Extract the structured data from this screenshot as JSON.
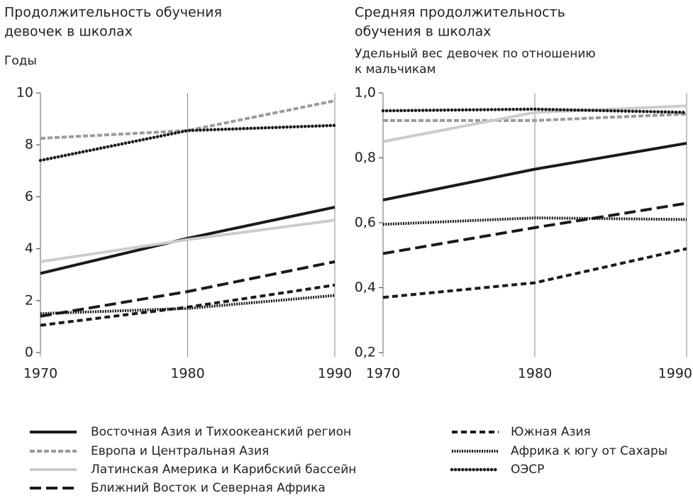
{
  "chart_data": [
    {
      "type": "line",
      "title": [
        "Продолжительность обучения",
        "девочек в школах"
      ],
      "y_label": "Годы",
      "x": [
        1970,
        1980,
        1990
      ],
      "xlim": [
        1970,
        1990
      ],
      "xticks": [
        1970,
        1980,
        1990
      ],
      "ylim": [
        0,
        10
      ],
      "yticks": [
        0,
        2,
        4,
        6,
        8,
        10
      ],
      "series": [
        {
          "name": "Восточная Азия и Тихоокеанский регион",
          "color": "#1a1a1a",
          "dash": "none",
          "values": [
            3.05,
            4.4,
            5.6
          ]
        },
        {
          "name": "Европа и Центральная Азия",
          "color": "#9a9a9a",
          "dash": "7 3",
          "values": [
            8.25,
            8.55,
            9.7
          ]
        },
        {
          "name": "Латинская Америка и Карибский бассейн",
          "color": "#cccccc",
          "dash": "none",
          "values": [
            3.5,
            4.35,
            5.1
          ]
        },
        {
          "name": "Ближний Восток и Северная Африка",
          "color": "#1a1a1a",
          "dash": "16 7",
          "values": [
            1.4,
            2.35,
            3.5
          ]
        },
        {
          "name": "Южная Азия",
          "color": "#1a1a1a",
          "dash": "8 5",
          "values": [
            1.05,
            1.75,
            2.6
          ]
        },
        {
          "name": "Африка к югу от Сахары",
          "color": "#1a1a1a",
          "dash": "2 1.5",
          "values": [
            1.5,
            1.7,
            2.2
          ]
        },
        {
          "name": "ОЭСР",
          "color": "#1a1a1a",
          "dash": "0.1 5",
          "values": [
            7.4,
            8.55,
            8.75
          ]
        }
      ]
    },
    {
      "type": "line",
      "title": [
        "Средняя продолжительность",
        "обучения в школах"
      ],
      "subtitle": [
        "Удельный вес девочек по отношению",
        "к мальчикам"
      ],
      "x": [
        1970,
        1980,
        1990
      ],
      "xlim": [
        1970,
        1990
      ],
      "xticks": [
        1970,
        1980,
        1990
      ],
      "ylim": [
        0.2,
        1.0
      ],
      "yticks": [
        {
          "value": 0.2,
          "label": "0,2"
        },
        {
          "value": 0.4,
          "label": "0,4"
        },
        {
          "value": 0.6,
          "label": "0,6"
        },
        {
          "value": 0.8,
          "label": "0,8"
        },
        {
          "value": 1.0,
          "label": "1,0"
        }
      ],
      "series": [
        {
          "color": "#1a1a1a",
          "dash": "none",
          "values": [
            0.67,
            0.765,
            0.845
          ]
        },
        {
          "color": "#9a9a9a",
          "dash": "7 3",
          "values": [
            0.915,
            0.915,
            0.935
          ]
        },
        {
          "color": "#cccccc",
          "dash": "none",
          "values": [
            0.85,
            0.94,
            0.96
          ]
        },
        {
          "color": "#1a1a1a",
          "dash": "16 7",
          "values": [
            0.505,
            0.585,
            0.66
          ]
        },
        {
          "color": "#1a1a1a",
          "dash": "8 5",
          "values": [
            0.37,
            0.415,
            0.52
          ]
        },
        {
          "color": "#1a1a1a",
          "dash": "2 1.5",
          "values": [
            0.595,
            0.615,
            0.61
          ]
        },
        {
          "color": "#1a1a1a",
          "dash": "0.1 5",
          "values": [
            0.945,
            0.95,
            0.94
          ]
        }
      ]
    }
  ]
}
